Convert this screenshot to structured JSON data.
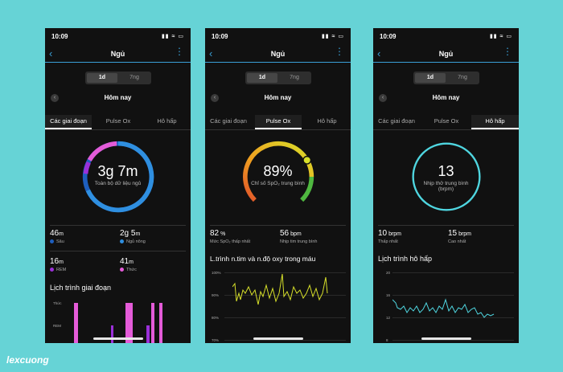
{
  "phones": [
    {
      "status_time": "10:09",
      "nav_title": "Ngủ",
      "seg_on": "1d",
      "seg_off": "7ng",
      "date": "Hôm nay",
      "tabs": [
        "Các giai đoạn",
        "Pulse Ox",
        "Hô hấp"
      ],
      "active_tab": 0,
      "center_value": "3g 7m",
      "center_label": "Toàn bộ dữ liệu ngủ",
      "stats": [
        {
          "num": "46",
          "unit": "m",
          "label": "Sâu",
          "color": "#1e5fbf"
        },
        {
          "num": "2g 5",
          "unit": "m",
          "label": "Ngủ nông",
          "color": "#2f8fe0"
        },
        {
          "num": "16",
          "unit": "m",
          "label": "REM",
          "color": "#9b30d9"
        },
        {
          "num": "41",
          "unit": "m",
          "label": "Thức",
          "color": "#e45bd8"
        }
      ],
      "section_title": "Lịch trình giai đoạn",
      "chart_ticks": [
        "Thức",
        "REM"
      ]
    },
    {
      "status_time": "10:09",
      "nav_title": "Ngủ",
      "seg_on": "1d",
      "seg_off": "7ng",
      "date": "Hôm nay",
      "tabs": [
        "Các giai đoạn",
        "Pulse Ox",
        "Hô hấp"
      ],
      "active_tab": 1,
      "center_value": "89%",
      "center_label": "Chỉ số SpO₂ trung bình",
      "stats": [
        {
          "num": "82",
          "unit": " %",
          "label": "Mức SpO₂ thấp nhất"
        },
        {
          "num": "56",
          "unit": " bpm",
          "label": "Nhịp tim trung bình"
        }
      ],
      "section_title": "L.trình n.tim và n.độ oxy trong máu",
      "chart_ticks": [
        "100%",
        "90%",
        "80%",
        "70%"
      ]
    },
    {
      "status_time": "10:09",
      "nav_title": "Ngủ",
      "seg_on": "1d",
      "seg_off": "7ng",
      "date": "Hôm nay",
      "tabs": [
        "Các giai đoạn",
        "Pulse Ox",
        "Hô hấp"
      ],
      "active_tab": 2,
      "center_value": "13",
      "center_label_lines": [
        "Nhịp thở trung bình",
        "(brpm)"
      ],
      "stats": [
        {
          "num": "10",
          "unit": " brpm",
          "label": "Thấp nhất"
        },
        {
          "num": "15",
          "unit": " brpm",
          "label": "Cao nhất"
        }
      ],
      "section_title": "Lịch trình hô hấp",
      "chart_ticks": [
        "20",
        "16",
        "12",
        "8"
      ]
    }
  ],
  "watermark": "lexcuong",
  "colors": {
    "background": "#66d3d6",
    "phone_bg": "#111111",
    "accent": "#3aa0d8",
    "respiration": "#4fd6e0",
    "spo2_line": "#d7e02a"
  }
}
